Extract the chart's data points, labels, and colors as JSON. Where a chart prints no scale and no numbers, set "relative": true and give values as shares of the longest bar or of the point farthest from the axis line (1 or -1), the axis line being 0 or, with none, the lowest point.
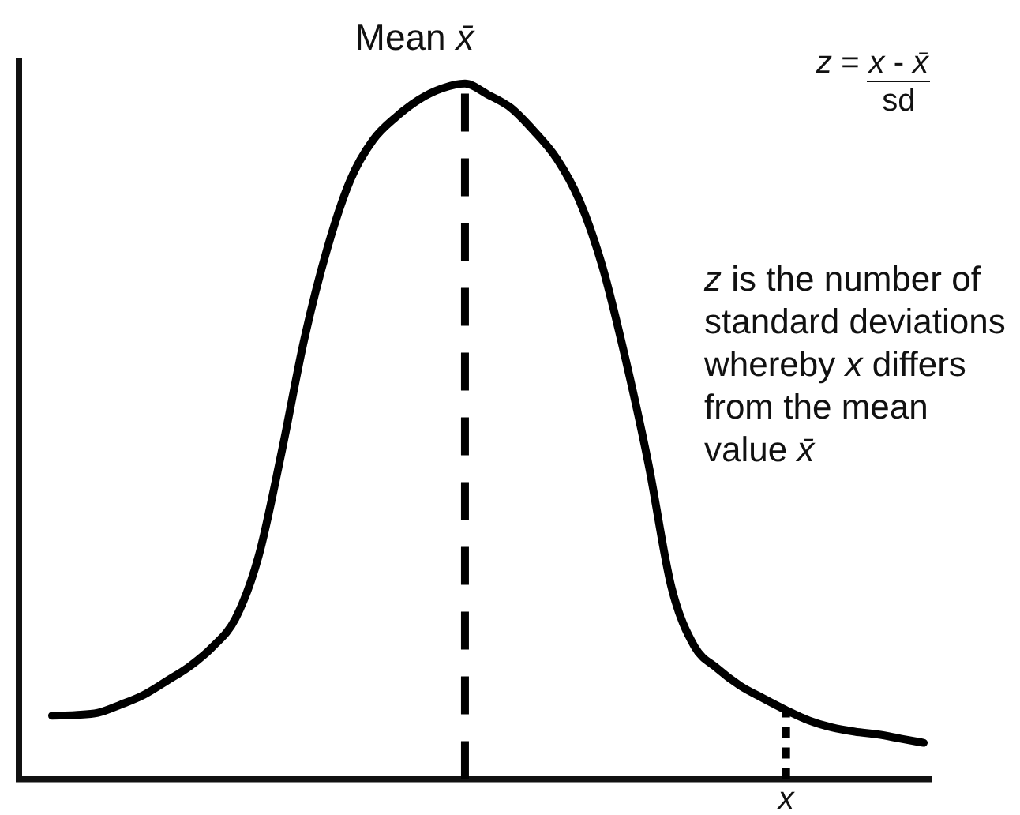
{
  "chart_data": {
    "type": "line",
    "relative": true,
    "categories": [
      null,
      null,
      null,
      null,
      null,
      null,
      null,
      null,
      null,
      null,
      null,
      null,
      null,
      null,
      null,
      null,
      null,
      null,
      null,
      null,
      null,
      null,
      null,
      null,
      null,
      null,
      null,
      null,
      null,
      null,
      null,
      null,
      null,
      null,
      null,
      null,
      null,
      null,
      null
    ],
    "values": [
      0.091,
      0.092,
      0.095,
      0.107,
      0.121,
      0.141,
      0.162,
      0.19,
      0.231,
      0.32,
      0.469,
      0.633,
      0.763,
      0.861,
      0.919,
      0.952,
      0.977,
      0.993,
      1,
      0.984,
      0.965,
      0.932,
      0.892,
      0.831,
      0.736,
      0.604,
      0.453,
      0.276,
      0.191,
      0.159,
      0.134,
      0.116,
      0.099,
      0.084,
      0.074,
      0.068,
      0.064,
      0.058,
      0.052
    ],
    "color": "#000000",
    "annotations": [
      "Mean x̄",
      {
        "text": "x",
        "y": 0.099
      },
      "z = x - x̄\nsd",
      "z is the number of\nstandard deviations\nwhereby x differs\nfrom the mean\nvalue x̄"
    ]
  }
}
